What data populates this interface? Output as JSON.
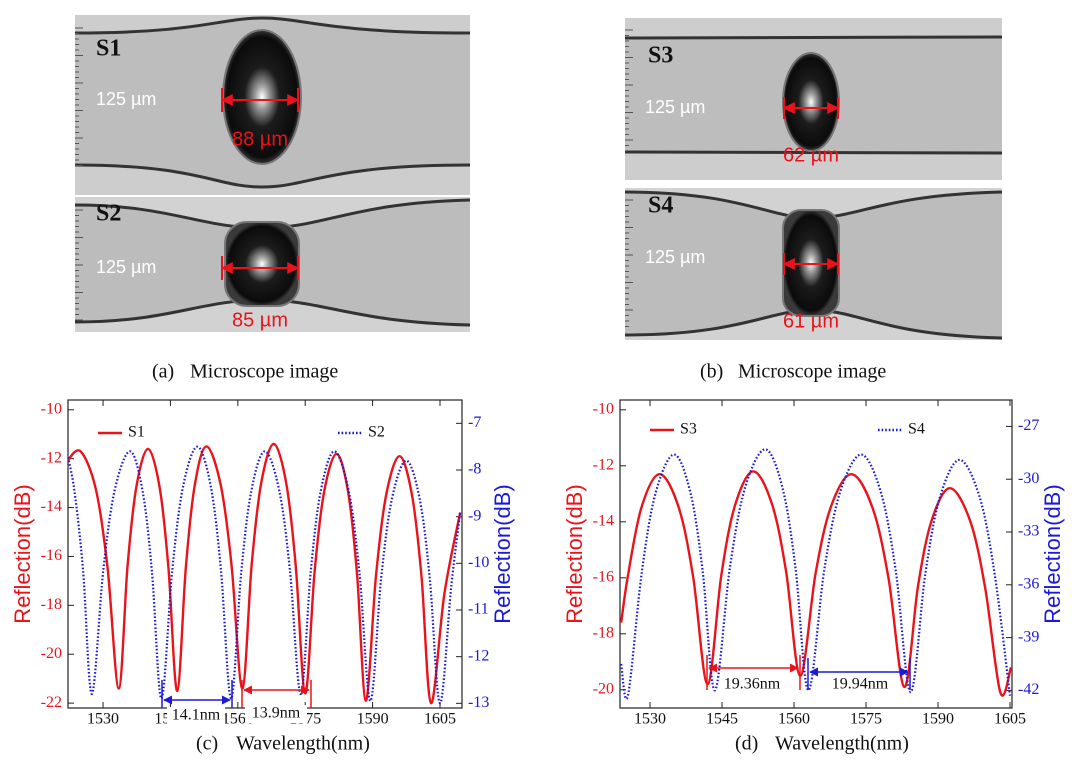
{
  "images": [
    {
      "panel": "(a)",
      "caption": "Microscope image",
      "samples": [
        {
          "name": "S1",
          "scale": "125 µm",
          "width": "88 µm"
        },
        {
          "name": "S2",
          "scale": "125 µm",
          "width": "85 µm"
        }
      ]
    },
    {
      "panel": "(b)",
      "caption": "Microscope image",
      "samples": [
        {
          "name": "S3",
          "scale": "125 µm",
          "width": "62 µm"
        },
        {
          "name": "S4",
          "scale": "125 µm",
          "width": "61 µm"
        }
      ]
    }
  ],
  "chart_data": [
    {
      "type": "line",
      "panel": "(c)",
      "xlabel": "Wavelength(nm)",
      "ylabel": "Reflection(dB)",
      "y2label": "Reflection(dB)",
      "xlim": [
        1522.2,
        1609.9
      ],
      "xticks": [
        1530,
        1545,
        1560,
        1575,
        1590,
        1605
      ],
      "ylim": [
        -22.2,
        -9.6
      ],
      "yticks": [
        -22,
        -20,
        -18,
        -16,
        -14,
        -12,
        -10
      ],
      "y2lim": [
        -13.1,
        -6.5
      ],
      "y2ticks": [
        -13,
        -12,
        -11,
        -10,
        -9,
        -8,
        -7
      ],
      "annotations": [
        "14.1nm",
        "13.9nm"
      ],
      "series": [
        {
          "name": "S1",
          "color": "#e8131b",
          "style": "solid",
          "x": [
            1522,
            1525,
            1528.4,
            1531,
            1533.5,
            1535.45,
            1537.4,
            1540,
            1542.6,
            1544.55,
            1546.5,
            1548.45,
            1550.4,
            1553,
            1556.2,
            1558.6,
            1561,
            1563.1,
            1565.2,
            1568,
            1570.8,
            1572.9,
            1575,
            1577.1,
            1579.2,
            1582,
            1584.6,
            1586.55,
            1588.5,
            1590.75,
            1593,
            1596,
            1598.8,
            1600.9,
            1603,
            1606,
            1609.5
          ],
          "values": [
            -12.1,
            -11.7,
            -13.25,
            -16.45,
            -21.4,
            -16.4,
            -13.17,
            -11.6,
            -13.18,
            -16.45,
            -21.5,
            -16.4,
            -13.1,
            -11.5,
            -13.08,
            -16.35,
            -21.4,
            -16.3,
            -13.0,
            -11.4,
            -13.03,
            -16.4,
            -21.6,
            -16.6,
            -13.37,
            -11.8,
            -13.42,
            -16.75,
            -21.9,
            -16.8,
            -13.5,
            -11.9,
            -13.52,
            -16.85,
            -22.0,
            -17.5,
            -14.2
          ]
        },
        {
          "name": "S2",
          "color": "#1a1ad6",
          "style": "dotted",
          "axis": "y2",
          "x": [
            1522,
            1523.6,
            1525.55,
            1527.5,
            1530.05,
            1532.6,
            1536,
            1538.8,
            1540.9,
            1543,
            1545.4,
            1547.8,
            1551,
            1554,
            1556.25,
            1558.5,
            1560.75,
            1563,
            1566,
            1569.2,
            1571.6,
            1574,
            1576.25,
            1578.5,
            1581.5,
            1584.7,
            1587.1,
            1589.5,
            1591.9,
            1594.3,
            1597.5,
            1600.5,
            1602.75,
            1605,
            1607.5,
            1609.5
          ],
          "values": [
            -7.65,
            -8.43,
            -10.15,
            -12.8,
            -10.15,
            -8.43,
            -7.6,
            -8.45,
            -10.2,
            -12.9,
            -10.15,
            -8.36,
            -7.5,
            -8.36,
            -10.15,
            -12.9,
            -10.2,
            -8.45,
            -7.6,
            -8.43,
            -10.15,
            -12.8,
            -10.15,
            -8.43,
            -7.6,
            -8.46,
            -10.22,
            -12.95,
            -10.32,
            -8.62,
            -7.8,
            -8.63,
            -10.35,
            -13.0,
            -10.5,
            -8.9
          ]
        }
      ]
    },
    {
      "type": "line",
      "panel": "(d)",
      "xlabel": "Wavelength(nm)",
      "ylabel": "Reflection(dB)",
      "y2label": "Reflection(dB)",
      "xlim": [
        1523.75,
        1605.42
      ],
      "xticks": [
        1530,
        1545,
        1560,
        1575,
        1590,
        1605
      ],
      "ylim": [
        -20.65,
        -9.65
      ],
      "yticks": [
        -20,
        -18,
        -16,
        -14,
        -12,
        -10
      ],
      "y2lim": [
        -43,
        -25.5
      ],
      "y2ticks": [
        -42,
        -39,
        -36,
        -33,
        -30,
        -27
      ],
      "annotations": [
        "19.36nm",
        "19.94nm"
      ],
      "series": [
        {
          "name": "S3",
          "color": "#e8131b",
          "style": "solid",
          "x": [
            1524,
            1525.35,
            1528.2,
            1532,
            1536,
            1539,
            1542,
            1544.85,
            1547.7,
            1551.5,
            1555.42,
            1558.36,
            1561.3,
            1564.51,
            1567.72,
            1572,
            1576.4,
            1579.7,
            1583,
            1585.85,
            1588.7,
            1592.5,
            1596.7,
            1599.85,
            1603,
            1605.2
          ],
          "values": [
            -17.6,
            -15.98,
            -13.5,
            -12.3,
            -13.5,
            -15.98,
            -19.8,
            -15.92,
            -13.42,
            -12.2,
            -13.37,
            -15.78,
            -19.5,
            -15.83,
            -13.45,
            -12.3,
            -13.52,
            -16.02,
            -19.9,
            -16.28,
            -13.94,
            -12.8,
            -13.97,
            -16.38,
            -20.1,
            -19.2
          ]
        },
        {
          "name": "S4",
          "color": "#1a1ad6",
          "style": "dotted",
          "axis": "y2",
          "x": [
            1524,
            1525.4,
            1528.28,
            1531.16,
            1535,
            1538.4,
            1540.95,
            1543.5,
            1546.65,
            1549.8,
            1554,
            1557.6,
            1560.3,
            1563,
            1566.3,
            1569.6,
            1574,
            1578.12,
            1581.21,
            1584.3,
            1587.36,
            1590.42,
            1594.5,
            1598.7,
            1601.85,
            1605
          ],
          "values": [
            -40.5,
            -42.3,
            -35.31,
            -30.79,
            -28.6,
            -30.74,
            -35.17,
            -42.0,
            -35.01,
            -30.49,
            -28.3,
            -30.49,
            -35.01,
            -42.0,
            -35.17,
            -30.74,
            -28.6,
            -30.76,
            -35.22,
            -42.1,
            -35.37,
            -31.01,
            -28.9,
            -31.04,
            -35.47,
            -42.3
          ]
        }
      ]
    }
  ]
}
